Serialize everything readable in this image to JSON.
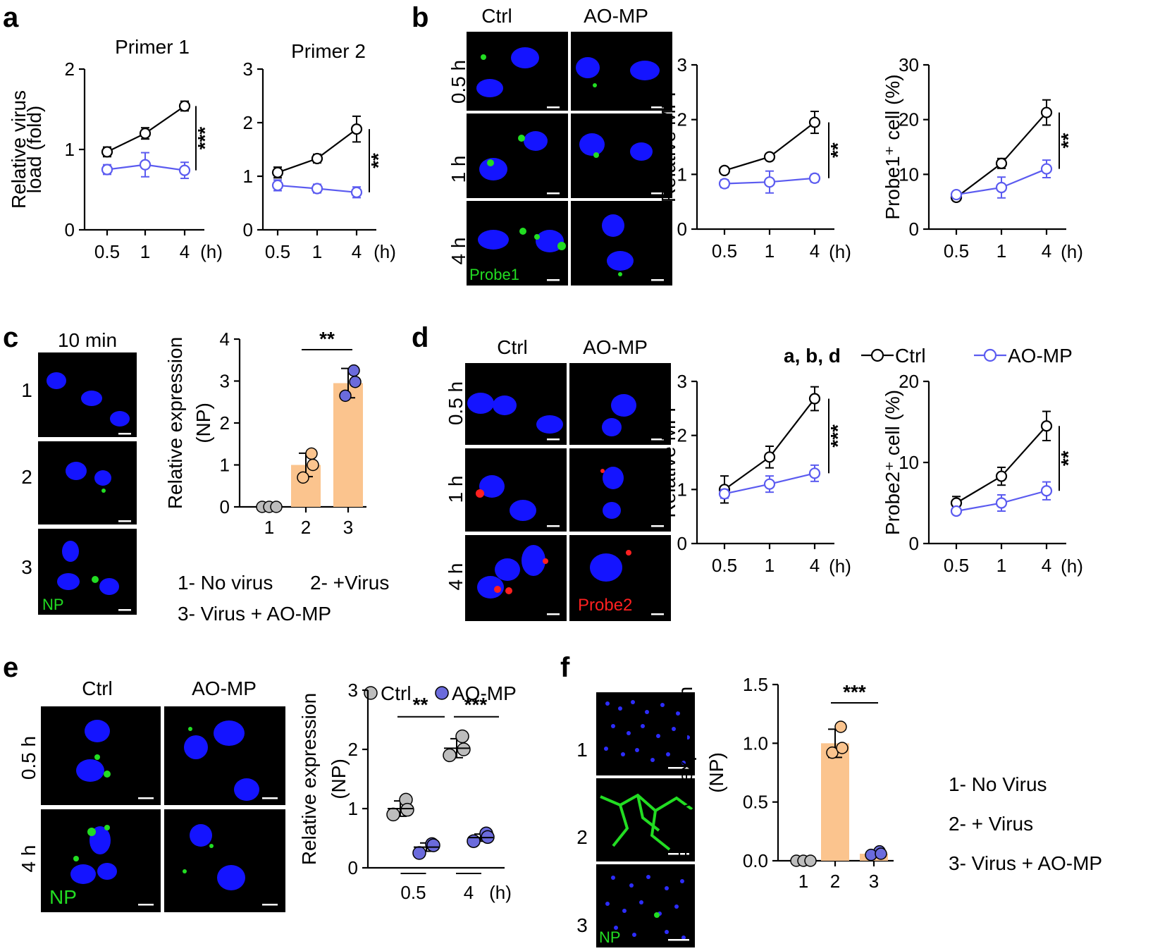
{
  "figure": {
    "panel_letters": [
      "a",
      "b",
      "c",
      "d",
      "e",
      "f"
    ],
    "legend_main": {
      "label": "a, b, d",
      "ctrl": "Ctrl",
      "aomp": "AO-MP"
    },
    "legend_e": {
      "ctrl": "Ctrl",
      "aomp": "AO-MP"
    },
    "colors": {
      "ctrl": "#000000",
      "aomp": "#5b5bf0",
      "bar": "#fbc48e",
      "grey_dot": "#bdbdbd",
      "blue_dot": "#6b6bdc",
      "nucleus": "#1414ff",
      "green": "#22dd22",
      "red": "#ff2020"
    },
    "micro": {
      "b": {
        "cols": [
          "Ctrl",
          "AO-MP"
        ],
        "rows": [
          "0.5 h",
          "1 h",
          "4 h"
        ],
        "stain": "Probe1"
      },
      "c": {
        "title": "10 min",
        "rows": [
          "1",
          "2",
          "3"
        ],
        "stain": "NP"
      },
      "d": {
        "cols": [
          "Ctrl",
          "AO-MP"
        ],
        "rows": [
          "0.5 h",
          "1 h",
          "4 h"
        ],
        "stain": "Probe2"
      },
      "e": {
        "cols": [
          "Ctrl",
          "AO-MP"
        ],
        "rows": [
          "0.5 h",
          "4 h"
        ],
        "stain": "NP"
      },
      "f": {
        "rows": [
          "1",
          "2",
          "3"
        ],
        "stain": "NP"
      }
    },
    "notes_c": [
      "1- No virus",
      "2- +Virus",
      "3- Virus + AO-MP"
    ],
    "notes_f": [
      "1- No Virus",
      "2- + Virus",
      "3- Virus + AO-MP"
    ]
  },
  "chart_data": [
    {
      "id": "a1",
      "panel": "a",
      "type": "line",
      "title": "Primer 1",
      "ylabel": [
        "Relative virus",
        "load (fold)"
      ],
      "categories": [
        "0.5",
        "1",
        "4"
      ],
      "x_unit": "(h)",
      "ylim": [
        0,
        2
      ],
      "yticks": [
        "0",
        "1",
        "2"
      ],
      "series": [
        {
          "name": "Ctrl",
          "values": [
            0.97,
            1.2,
            1.54
          ],
          "err": [
            0.06,
            0.07,
            0.06
          ]
        },
        {
          "name": "AO-MP",
          "values": [
            0.75,
            0.81,
            0.74
          ],
          "err": [
            0.06,
            0.15,
            0.1
          ]
        }
      ],
      "sig": "***"
    },
    {
      "id": "a2",
      "panel": "a",
      "type": "line",
      "title": "Primer 2",
      "ylabel": [],
      "categories": [
        "0.5",
        "1",
        "4"
      ],
      "x_unit": "(h)",
      "ylim": [
        0,
        3
      ],
      "yticks": [
        "0",
        "1",
        "2",
        "3"
      ],
      "series": [
        {
          "name": "Ctrl",
          "values": [
            1.07,
            1.33,
            1.88
          ],
          "err": [
            0.1,
            0.08,
            0.24
          ]
        },
        {
          "name": "AO-MP",
          "values": [
            0.83,
            0.77,
            0.7
          ],
          "err": [
            0.1,
            0.08,
            0.1
          ]
        }
      ],
      "sig": "**"
    },
    {
      "id": "b1",
      "panel": "b",
      "type": "line",
      "title": "",
      "ylabel": [
        "Relative MFI"
      ],
      "categories": [
        "0.5",
        "1",
        "4"
      ],
      "x_unit": "(h)",
      "ylim": [
        0,
        3
      ],
      "yticks": [
        "0",
        "1",
        "2",
        "3"
      ],
      "series": [
        {
          "name": "Ctrl",
          "values": [
            1.07,
            1.32,
            1.95
          ],
          "err": [
            0.04,
            0.04,
            0.2
          ]
        },
        {
          "name": "AO-MP",
          "values": [
            0.83,
            0.86,
            0.93
          ],
          "err": [
            0.07,
            0.2,
            0.07
          ]
        }
      ],
      "sig": "**"
    },
    {
      "id": "b2",
      "panel": "b",
      "type": "line",
      "title": "",
      "ylabel": [
        "Probe1⁺ cell (%)"
      ],
      "categories": [
        "0.5",
        "1",
        "4"
      ],
      "x_unit": "(h)",
      "ylim": [
        0,
        30
      ],
      "yticks": [
        "0",
        "10",
        "20",
        "30"
      ],
      "series": [
        {
          "name": "Ctrl",
          "values": [
            5.8,
            12.0,
            21.3
          ],
          "err": [
            0.6,
            0.9,
            2.3
          ]
        },
        {
          "name": "AO-MP",
          "values": [
            6.3,
            7.6,
            11.0
          ],
          "err": [
            0.5,
            1.9,
            1.6
          ]
        }
      ],
      "sig": "**"
    },
    {
      "id": "c",
      "panel": "c",
      "type": "bar",
      "title": "",
      "ylabel": [
        "Relative expression",
        "(NP)"
      ],
      "categories": [
        "1",
        "2",
        "3"
      ],
      "ylim": [
        0,
        4
      ],
      "yticks": [
        "0",
        "1",
        "2",
        "3",
        "4"
      ],
      "values": [
        0,
        1.0,
        2.95
      ],
      "err": [
        0,
        0.28,
        0.35
      ],
      "points": [
        [
          0,
          0,
          0
        ],
        [
          1.27,
          0.7,
          1.0
        ],
        [
          3.25,
          2.65,
          2.98
        ]
      ],
      "sig": {
        "label": "**",
        "between": [
          2,
          3
        ]
      }
    },
    {
      "id": "d1",
      "panel": "d",
      "type": "line",
      "title": "",
      "ylabel": [
        "Relative MFI"
      ],
      "categories": [
        "0.5",
        "1",
        "4"
      ],
      "x_unit": "(h)",
      "ylim": [
        0,
        3
      ],
      "yticks": [
        "0",
        "1",
        "2",
        "3"
      ],
      "series": [
        {
          "name": "Ctrl",
          "values": [
            1.0,
            1.6,
            2.68
          ],
          "err": [
            0.25,
            0.2,
            0.22
          ]
        },
        {
          "name": "AO-MP",
          "values": [
            0.92,
            1.1,
            1.3
          ],
          "err": [
            0.08,
            0.15,
            0.15
          ]
        }
      ],
      "sig": "***"
    },
    {
      "id": "d2",
      "panel": "d",
      "type": "line",
      "title": "",
      "ylabel": [
        "Probe2⁺ cell (%)"
      ],
      "categories": [
        "0.5",
        "1",
        "4"
      ],
      "x_unit": "(h)",
      "ylim": [
        0,
        20
      ],
      "yticks": [
        "0",
        "10",
        "20"
      ],
      "series": [
        {
          "name": "Ctrl",
          "values": [
            5.0,
            8.3,
            14.5
          ],
          "err": [
            0.8,
            1.1,
            1.8
          ]
        },
        {
          "name": "AO-MP",
          "values": [
            4.0,
            5.0,
            6.5
          ],
          "err": [
            0.3,
            1.0,
            1.1
          ]
        }
      ],
      "sig": "**"
    },
    {
      "id": "e",
      "panel": "e",
      "type": "scatter",
      "title": "",
      "ylabel": [
        "Relative expression",
        "(NP)"
      ],
      "categories": [
        "0.5",
        "4"
      ],
      "x_unit": "(h)",
      "ylim": [
        0,
        3
      ],
      "yticks": [
        "0",
        "1",
        "2",
        "3"
      ],
      "groups": [
        {
          "name": "Ctrl",
          "time": "0.5",
          "points": [
            1.15,
            0.9,
            0.98
          ],
          "mean": 1.0,
          "err": 0.13
        },
        {
          "name": "AO-MP",
          "time": "0.5",
          "points": [
            0.4,
            0.25,
            0.38
          ],
          "mean": 0.35,
          "err": 0.07
        },
        {
          "name": "Ctrl",
          "time": "4",
          "points": [
            2.22,
            1.9,
            2.0
          ],
          "mean": 2.02,
          "err": 0.16
        },
        {
          "name": "AO-MP",
          "time": "4",
          "points": [
            0.58,
            0.45,
            0.52
          ],
          "mean": 0.51,
          "err": 0.06
        }
      ],
      "sig": [
        "**",
        "***"
      ]
    },
    {
      "id": "f",
      "panel": "f",
      "type": "bar",
      "title": "",
      "ylabel": [
        "Relative expression",
        "(NP)"
      ],
      "categories": [
        "1",
        "2",
        "3"
      ],
      "ylim": [
        0,
        1.5
      ],
      "yticks": [
        "0.0",
        "0.5",
        "1.0",
        "1.5"
      ],
      "values": [
        0,
        1.0,
        0.06
      ],
      "err": [
        0,
        0.12,
        0.02
      ],
      "points": [
        [
          0,
          0,
          0
        ],
        [
          1.14,
          0.92,
          0.96
        ],
        [
          0.08,
          0.05,
          0.06
        ]
      ],
      "sig": {
        "label": "***",
        "between": [
          2,
          3
        ]
      }
    }
  ]
}
